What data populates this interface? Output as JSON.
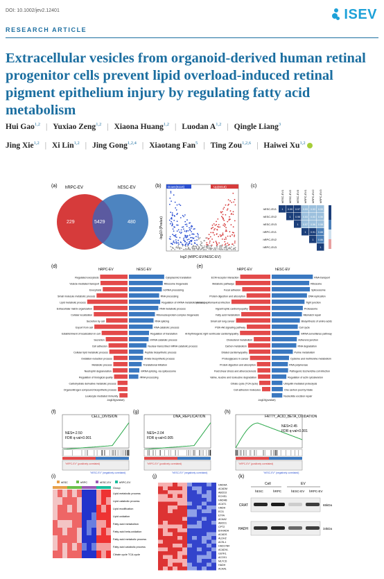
{
  "header": {
    "doi": "DOI: 10.1002/jev2.12401",
    "logo_text": "ISEV",
    "article_type": "RESEARCH ARTICLE"
  },
  "title": "Extracellular vesicles from organoid-derived human retinal progenitor cells prevent lipid overload-induced retinal pigment epithelium injury by regulating fatty acid metabolism",
  "authors": [
    {
      "name": "Hui Gao",
      "aff": "1,2"
    },
    {
      "name": "Yuxiao Zeng",
      "aff": "1,2"
    },
    {
      "name": "Xiaona Huang",
      "aff": "1,2"
    },
    {
      "name": "Luodan A",
      "aff": "1,2"
    },
    {
      "name": "Qingle Liang",
      "aff": "3"
    },
    {
      "name": "Jing Xie",
      "aff": "1,2"
    },
    {
      "name": "Xi Lin",
      "aff": "1,2"
    },
    {
      "name": "Jing Gong",
      "aff": "1,2,4"
    },
    {
      "name": "Xiaotang Fan",
      "aff": "5"
    },
    {
      "name": "Ting Zou",
      "aff": "1,2,6"
    },
    {
      "name": "Haiwei Xu",
      "aff": "1,2"
    }
  ],
  "figure": {
    "a": {
      "label": "(a)",
      "left": "hRPC-EV",
      "right": "hESC-EV",
      "only_left": "229",
      "both": "5429",
      "only_right": "480"
    },
    "b": {
      "label": "(b)",
      "ylabel": "-log10 (Pvalue)",
      "xlabel": "log2 (hRPC-EV/hESC-EV)",
      "down": "Down(6118)",
      "up": "Up(6018)"
    },
    "c": {
      "label": "(c)",
      "rows": [
        "hESC-EV1",
        "hESC-EV2",
        "hESC-EV3",
        "hRPC-EV1",
        "hRPC-EV2",
        "hRPC-EV3"
      ]
    },
    "d": {
      "label": "(d)",
      "left": "hRPC-EV",
      "right": "hESC-EV",
      "left_terms": [
        "Regulated exocytosis",
        "Vesicle-mediated transport",
        "Exocytosis",
        "Small molecule metabolic process",
        "Lipid metabolic process",
        "Extracellular matrix organization",
        "Cellular localization",
        "Secretion by cell",
        "Export from cell",
        "Establishment of localization in cell",
        "Secretion",
        "Cell adhesion",
        "Cellular lipid metabolic process",
        "Oxidation-reduction process",
        "Metabolic process",
        "Neutrophil degranulation",
        "Regulation of biological quality",
        "Carbohydrate derivative metabolic process",
        "Organonitrogen compound biosynthetic process",
        "Leukocyte mediated immunity"
      ],
      "right_terms": [
        "Cytoplasmic translation",
        "Ribosome biogenesis",
        "ncRNA processing",
        "RNA processing",
        "Regulation of mRNA metabolic process",
        "RNA metabolic process",
        "Ribonucleoprotein complex biogenesis",
        "RNA splicing",
        "RNA catabolic process",
        "Regulation of translation",
        "mRNA catabolic process",
        "Nuclear-transcribed mRNA catabolic process",
        "Peptide biosynthetic process",
        "Amide biosynthetic process",
        "Translational initiation",
        "mRNA splicing, via spliceosome",
        "rRNA processing"
      ],
      "axis": "-log10(pvalue)"
    },
    "e": {
      "label": "(e)",
      "left": "hRPC-EV",
      "right": "hESC-EV",
      "left_terms": [
        "ECM-receptor interaction",
        "Metabolic pathways",
        "Focal adhesion",
        "Protein digestion and absorption",
        "Human papillomavirus infection",
        "Hypertrophic cardiomyopathy",
        "Fatty acid metabolism",
        "Small cell lung cancer",
        "PI3K-Akt signaling pathway",
        "Arrhythmogenic right ventricular cardiomyopathy",
        "Cholesterol metabolism",
        "Carbon metabolism",
        "Dilated cardiomyopathy",
        "Proteoglycans in cancer",
        "Protein digestion and absorption",
        "Fluid shear stress and atherosclerosis",
        "Valine, leucine and isoleucine degradation",
        "Citrate cycle (TCA cycle)",
        "Cell adhesion molecules"
      ],
      "right_terms": [
        "RNA transport",
        "Ribosome",
        "Spliceosome",
        "DNA replication",
        "Tight junction",
        "Proteasome",
        "Mismatch repair",
        "Biosynthesis of amino acids",
        "Cell cycle",
        "mRNA surveillance pathway",
        "Adherens junction",
        "RNA degradation",
        "Purine metabolism",
        "Cysteine and methionine metabolism",
        "RNA polymerase",
        "Pathogenic Escherichia coli infection",
        "Regulation of actin cytoskeleton",
        "Ubiquitin mediated proteolysis",
        "One carbon pool by folate",
        "Nucleotide excision repair"
      ],
      "axis": "-log10(pvalue)"
    },
    "f": {
      "label": "(f)",
      "title": "CELL_DIVISION",
      "nes": "NES=-2.50",
      "fdr": "FDR q-val<0.001",
      "pos": "\"hRPC-EV\" (positively correlated)",
      "neg": "\"hESC-EV\" (negatively correlated)"
    },
    "g": {
      "label": "(g)",
      "title": "DNA_REPLICATION",
      "nes": "NES=-2.04",
      "fdr": "FDR q-val<0.005",
      "pos": "\"hRPC-EV\" (positively correlated)",
      "neg": "\"hESC-EV\" (negatively correlated)"
    },
    "h": {
      "label": "(h)",
      "title": "FATTY_ACID_BETA_OXIDATION",
      "nes": "NES=2.45",
      "fdr": "FDR q-val<0.001",
      "pos": "\"hRPC-EV\" (positively correlated)",
      "neg": "\"hESC-EV\" (negatively correlated)"
    },
    "i": {
      "label": "(i)",
      "legend": [
        "hESC",
        "hRPC",
        "hESC-EV",
        "hRPC-EV"
      ],
      "group": "Group",
      "terms": [
        "Lipid metabolic process",
        "Lipid catabolic process",
        "Lipid modification",
        "Lipid oxidation",
        "Fatty acid metabolism",
        "Fatty acid beta-oxidation",
        "Fatty acid metabolic process",
        "Fatty acid catabolic process",
        "Citrate cycle TCA cycle"
      ]
    },
    "j": {
      "label": "(j)",
      "genes": [
        "HADHA",
        "ACADM",
        "ABCD3",
        "ECHS1",
        "HADHB",
        "ACAT1",
        "HADH",
        "ECI1",
        "ETFA",
        "ACAA2",
        "ABCD1",
        "CPT2",
        "EHHADH",
        "ACADS",
        "ALDH2",
        "ACSL1",
        "HSD17B4",
        "ACADVL",
        "GSTK1",
        "ACOX1",
        "MLYCD",
        "HADH",
        "ACAA1"
      ]
    },
    "k": {
      "label": "(k)",
      "cell": "Cell",
      "ev": "EV",
      "lanes": [
        "hESC",
        "hRPC",
        "hESC-EV",
        "hRPC-EV"
      ],
      "bands": [
        {
          "name": "CRAT",
          "kda": "65kDa"
        },
        {
          "name": "HADH",
          "kda": "34kDa"
        }
      ]
    }
  }
}
